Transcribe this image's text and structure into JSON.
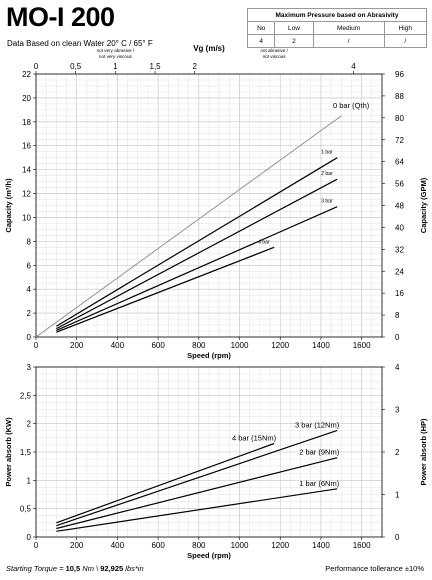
{
  "header": {
    "title": "MO-I 200",
    "subtitle": "Data Based on clean Water 20° C  /  65° F"
  },
  "pressure_table": {
    "title": "Maximum Pressure based on Abrasivity",
    "columns": [
      "No",
      "Low",
      "Medium",
      "High"
    ],
    "values": [
      "4",
      "2",
      "/",
      "/"
    ]
  },
  "footer": {
    "torque_label": "Starting Torque =",
    "torque_nm": "10,5",
    "torque_nm_unit": "Nm",
    "torque_sep": "\\",
    "torque_lbs": "92,925",
    "torque_lbs_unit": "lbs*in",
    "tolerance": "Performance tollerance ±10%"
  },
  "chart_data": [
    {
      "type": "line",
      "xlabel": "Speed (rpm)",
      "ylabel": "Capacity (m³/h)",
      "y2label": "Capacity (GPM)",
      "top_axis_label": "Vg (m/s)",
      "xlim": [
        0,
        1700
      ],
      "ylim": [
        0,
        22
      ],
      "y2lim": [
        0,
        96
      ],
      "x_ticks": [
        0,
        200,
        400,
        600,
        800,
        1000,
        1200,
        1400,
        1600
      ],
      "y_ticks": [
        0,
        2,
        4,
        6,
        8,
        10,
        12,
        14,
        16,
        18,
        20,
        22
      ],
      "y2_ticks": [
        0,
        8,
        16,
        24,
        32,
        40,
        48,
        56,
        64,
        72,
        80,
        88,
        96
      ],
      "top_ticks": [
        {
          "label": "0",
          "rpm": 0
        },
        {
          "label": "0,5",
          "rpm": 195
        },
        {
          "label": "1",
          "rpm": 390
        },
        {
          "label": "1,5",
          "rpm": 585
        },
        {
          "label": "2",
          "rpm": 780
        },
        {
          "label": "4",
          "rpm": 1560
        }
      ],
      "abrasive_zones": [
        {
          "text": [
            "not very abrasive /",
            "not very viscous"
          ],
          "rpm": 390
        },
        {
          "text": [
            "not  abrasive /",
            "not  viscous"
          ],
          "rpm": 1170
        }
      ],
      "grid": true,
      "series": [
        {
          "name": "0 bar (Qth)",
          "x": [
            0,
            1500
          ],
          "y": [
            0,
            18.5
          ],
          "color": "#8a8a8a"
        },
        {
          "name": "1 bar",
          "x": [
            100,
            1480
          ],
          "y": [
            0.9,
            15.0
          ],
          "color": "#000000"
        },
        {
          "name": "2 bar",
          "x": [
            100,
            1480
          ],
          "y": [
            0.7,
            13.2
          ],
          "color": "#000000"
        },
        {
          "name": "3 bar",
          "x": [
            100,
            1480
          ],
          "y": [
            0.55,
            10.9
          ],
          "color": "#000000"
        },
        {
          "name": "4 bar",
          "x": [
            100,
            1170
          ],
          "y": [
            0.4,
            7.5
          ],
          "color": "#000000"
        }
      ]
    },
    {
      "type": "line",
      "xlabel": "Speed (rpm)",
      "ylabel": "Power absorb (KW)",
      "y2label": "Power absorb (HP)",
      "xlim": [
        0,
        1700
      ],
      "ylim": [
        0,
        3
      ],
      "y2lim": [
        0,
        4
      ],
      "x_ticks": [
        0,
        200,
        400,
        600,
        800,
        1000,
        1200,
        1400,
        1600
      ],
      "y_ticks": [
        0,
        0.5,
        1,
        1.5,
        2,
        2.5,
        3
      ],
      "y2_ticks": [
        0,
        1,
        2,
        3,
        4
      ],
      "grid": true,
      "series": [
        {
          "name": "1 bar (6Nm)",
          "x": [
            100,
            1480
          ],
          "y": [
            0.1,
            0.85
          ],
          "color": "#000000"
        },
        {
          "name": "2 bar (9Nm)",
          "x": [
            100,
            1480
          ],
          "y": [
            0.15,
            1.4
          ],
          "color": "#000000"
        },
        {
          "name": "3 bar (12Nm)",
          "x": [
            100,
            1480
          ],
          "y": [
            0.2,
            1.88
          ],
          "color": "#000000"
        },
        {
          "name": "4 bar (15Nm)",
          "x": [
            100,
            1170
          ],
          "y": [
            0.25,
            1.65
          ],
          "color": "#000000"
        }
      ]
    }
  ]
}
